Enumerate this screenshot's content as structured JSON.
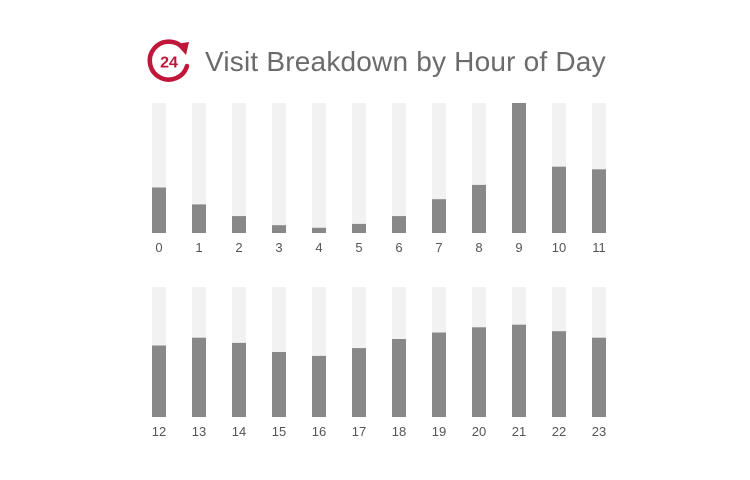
{
  "header": {
    "title": "Visit Breakdown by Hour of Day",
    "icon": "24-hour-clock-icon",
    "icon_text": "24"
  },
  "colors": {
    "accent": "#c0163a",
    "bar": "#888888",
    "track": "#f2f2f2",
    "title": "#6b6b6b",
    "tick": "#555555"
  },
  "chart_data": {
    "type": "bar",
    "title": "Visit Breakdown by Hour of Day",
    "xlabel": "",
    "ylabel": "",
    "ylim": [
      0,
      100
    ],
    "grid": false,
    "rows": [
      {
        "categories": [
          "0",
          "1",
          "2",
          "3",
          "4",
          "5",
          "6",
          "7",
          "8",
          "9",
          "10",
          "11"
        ],
        "values": [
          35,
          22,
          13,
          6,
          4,
          7,
          13,
          26,
          37,
          100,
          51,
          49
        ]
      },
      {
        "categories": [
          "12",
          "13",
          "14",
          "15",
          "16",
          "17",
          "18",
          "19",
          "20",
          "21",
          "22",
          "23"
        ],
        "values": [
          55,
          61,
          57,
          50,
          47,
          53,
          60,
          65,
          69,
          71,
          66,
          61
        ]
      }
    ]
  }
}
